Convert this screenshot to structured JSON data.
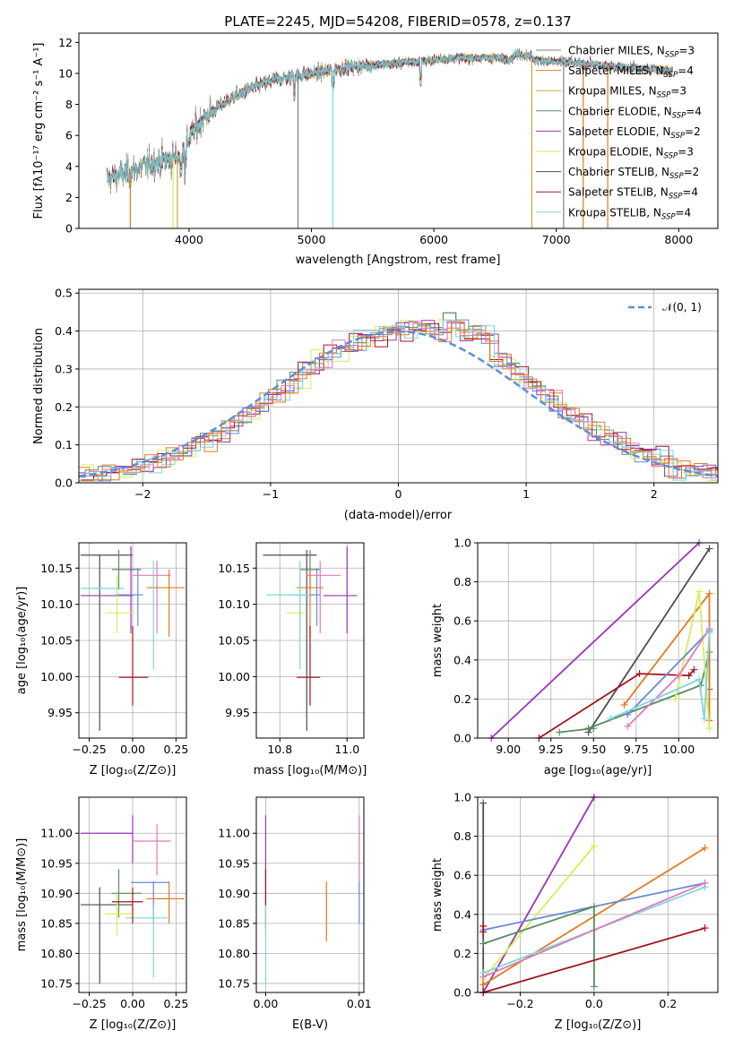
{
  "colors": {
    "chabrier_miles": "#6a88d8",
    "salpeter_miles": "#e37b22",
    "kroupa_miles": "#c9a53f",
    "chabrier_elodie": "#5b8a62",
    "salpeter_elodie": "#9b35b8",
    "kroupa_elodie": "#d4ef5a",
    "chabrier_stelib": "#4d4d4d",
    "salpeter_stelib": "#a3141e",
    "kroupa_stelib": "#7dd6de",
    "pink": "#e07ab8",
    "spectrum_grey": "#808080",
    "gauss": "#5a8fdc",
    "grid": "#b0b0b0"
  },
  "chart_data": [
    {
      "type": "line",
      "title": "PLATE=2245, MJD=54208, FIBERID=0578, z=0.137",
      "xlabel": "wavelength [Angstrom, rest frame]",
      "ylabel": "Flux [fλ10⁻¹⁷ erg cm⁻² s⁻¹ A⁻¹]",
      "xlim": [
        3100,
        8320
      ],
      "ylim": [
        0,
        12.6
      ],
      "xticks": [
        4000,
        5000,
        6000,
        7000,
        8000
      ],
      "yticks": [
        0,
        2,
        4,
        6,
        8,
        10,
        12
      ],
      "grid": false,
      "legend_position": "top-right",
      "legend": [
        "Chabrier MILES, N_SSP=3",
        "Salpeter MILES, N_SSP=4",
        "Kroupa MILES, N_SSP=3",
        "Chabrier ELODIE, N_SSP=4",
        "Salpeter ELODIE, N_SSP=2",
        "Kroupa ELODIE, N_SSP=3",
        "Chabrier STELIB, N_SSP=2",
        "Salpeter STELIB, N_SSP=4",
        "Kroupa STELIB, N_SSP=4"
      ],
      "continuum_x": [
        3330,
        3500,
        3700,
        3900,
        4000,
        4100,
        4300,
        4500,
        4700,
        5000,
        5300,
        5600,
        5900,
        6200,
        6500,
        6800,
        7100,
        7400,
        7700,
        7950
      ],
      "continuum_y": [
        3.2,
        3.6,
        4.2,
        4.6,
        5.8,
        7.0,
        8.2,
        9.0,
        9.6,
        10.0,
        10.4,
        10.6,
        10.8,
        11.0,
        11.0,
        10.9,
        10.7,
        10.5,
        10.3,
        10.2
      ]
    },
    {
      "type": "histogram",
      "xlabel": "(data-model)/error",
      "ylabel": "Normed distribution",
      "xlim": [
        -2.5,
        2.5
      ],
      "ylim": [
        0,
        0.51
      ],
      "xticks": [
        -2,
        -1,
        0,
        1,
        2
      ],
      "yticks": [
        0.0,
        0.1,
        0.2,
        0.3,
        0.4,
        0.5
      ],
      "grid": true,
      "legend": "𝒩(0, 1)"
    },
    {
      "type": "scatter",
      "xlabel": "Z [log₁₀(Z/Z⊙)]",
      "ylabel": "age  [log₁₀(age/yr)]",
      "xlim": [
        -0.31,
        0.31
      ],
      "ylim": [
        9.915,
        10.185
      ],
      "xticks": [
        -0.25,
        0.0,
        0.25
      ],
      "yticks": [
        9.95,
        10.0,
        10.05,
        10.1,
        10.15
      ],
      "grid": true
    },
    {
      "type": "scatter",
      "xlabel": "mass [log₁₀(M/M⊙)]",
      "xlim": [
        10.73,
        11.05
      ],
      "ylim": [
        9.915,
        10.185
      ],
      "xticks": [
        10.8,
        11.0
      ],
      "yticks": [
        9.95,
        10.0,
        10.05,
        10.1,
        10.15
      ],
      "grid": true
    },
    {
      "type": "line",
      "xlabel": "age  [log₁₀(age/yr)]",
      "ylabel": "mass weight",
      "xlim": [
        8.82,
        10.23
      ],
      "ylim": [
        0,
        1.0
      ],
      "xticks": [
        9.0,
        9.25,
        9.5,
        9.75,
        10.0
      ],
      "yticks": [
        0.0,
        0.2,
        0.4,
        0.6,
        0.8,
        1.0
      ],
      "grid": true
    },
    {
      "type": "scatter",
      "xlabel": "Z [log₁₀(Z/Z⊙)]",
      "ylabel": "mass [log₁₀(M/M⊙)]",
      "xlim": [
        -0.31,
        0.31
      ],
      "ylim": [
        10.735,
        11.06
      ],
      "xticks": [
        -0.25,
        0.0,
        0.25
      ],
      "yticks": [
        10.75,
        10.8,
        10.85,
        10.9,
        10.95,
        11.0
      ],
      "grid": true
    },
    {
      "type": "scatter",
      "xlabel": "E(B-V)",
      "xlim": [
        -0.001,
        0.0105
      ],
      "ylim": [
        10.735,
        11.06
      ],
      "xticks": [
        0.0,
        0.01
      ],
      "yticks": [
        10.75,
        10.8,
        10.85,
        10.9,
        10.95,
        11.0
      ],
      "grid": true
    },
    {
      "type": "line",
      "xlabel": "Z [log₁₀(Z/Z⊙)]",
      "ylabel": "mass weight",
      "xlim": [
        -0.315,
        0.335
      ],
      "ylim": [
        0,
        1.0
      ],
      "xticks": [
        -0.2,
        0.0,
        0.2
      ],
      "yticks": [
        0.0,
        0.2,
        0.4,
        0.6,
        0.8,
        1.0
      ],
      "grid": true
    }
  ]
}
